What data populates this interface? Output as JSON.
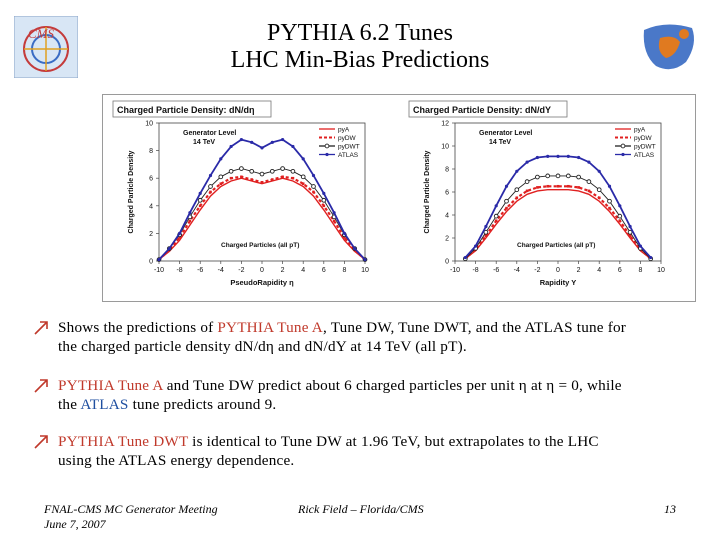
{
  "header": {
    "title_line1": "PYTHIA 6.2 Tunes",
    "title_line2": "LHC Min-Bias Predictions"
  },
  "colors": {
    "pyA": "#e02020",
    "pyDW": "#e02020",
    "pyDWT": "#222222",
    "ATLAS": "#2a2aa8",
    "highlight_red": "#c0392b",
    "highlight_blue": "#1f4fa0"
  },
  "chart_data": [
    {
      "type": "line",
      "title": "Charged Particle Density: dN/dη",
      "xlabel": "PseudoRapidity η",
      "ylabel": "Charged Particle Density",
      "annotation_top": "Generator Level",
      "annotation_top2": "14 TeV",
      "annotation_bottom": "Charged Particles (all pT)",
      "xlim": [
        -10,
        10
      ],
      "ylim": [
        0,
        10
      ],
      "xticks": [
        -10,
        -8,
        -6,
        -4,
        -2,
        0,
        2,
        4,
        6,
        8,
        10
      ],
      "yticks": [
        0,
        2,
        4,
        6,
        8,
        10
      ],
      "legend_position": "top-right",
      "series": [
        {
          "name": "pyA",
          "style": "solid-red",
          "x": [
            -10,
            -9,
            -8,
            -7,
            -6,
            -5,
            -4,
            -3,
            -2,
            -1,
            0,
            1,
            2,
            3,
            4,
            5,
            6,
            7,
            8,
            9,
            10
          ],
          "y": [
            0.1,
            0.7,
            1.5,
            2.6,
            3.7,
            4.7,
            5.4,
            5.8,
            6.0,
            5.8,
            5.6,
            5.8,
            6.0,
            5.8,
            5.4,
            4.7,
            3.7,
            2.6,
            1.5,
            0.7,
            0.1
          ]
        },
        {
          "name": "pyDW",
          "style": "dashed-red",
          "x": [
            -10,
            -9,
            -8,
            -7,
            -6,
            -5,
            -4,
            -3,
            -2,
            -1,
            0,
            1,
            2,
            3,
            4,
            5,
            6,
            7,
            8,
            9,
            10
          ],
          "y": [
            0.1,
            0.8,
            1.7,
            2.9,
            4.0,
            5.0,
            5.6,
            6.0,
            6.1,
            5.9,
            5.7,
            5.9,
            6.1,
            6.0,
            5.6,
            5.0,
            4.0,
            2.9,
            1.7,
            0.8,
            0.1
          ]
        },
        {
          "name": "pyDWT",
          "style": "open-circle-black",
          "x": [
            -10,
            -9,
            -8,
            -7,
            -6,
            -5,
            -4,
            -3,
            -2,
            -1,
            0,
            1,
            2,
            3,
            4,
            5,
            6,
            7,
            8,
            9,
            10
          ],
          "y": [
            0.1,
            0.9,
            1.9,
            3.2,
            4.4,
            5.4,
            6.1,
            6.5,
            6.7,
            6.5,
            6.3,
            6.5,
            6.7,
            6.5,
            6.1,
            5.4,
            4.4,
            3.2,
            1.9,
            0.9,
            0.1
          ]
        },
        {
          "name": "ATLAS",
          "style": "solid-blue",
          "x": [
            -10,
            -9,
            -8,
            -7,
            -6,
            -5,
            -4,
            -3,
            -2,
            -1,
            0,
            1,
            2,
            3,
            4,
            5,
            6,
            7,
            8,
            9,
            10
          ],
          "y": [
            0.1,
            0.9,
            2.0,
            3.5,
            4.9,
            6.2,
            7.4,
            8.3,
            8.8,
            8.6,
            8.2,
            8.6,
            8.8,
            8.3,
            7.4,
            6.2,
            4.9,
            3.5,
            2.0,
            0.9,
            0.1
          ]
        }
      ]
    },
    {
      "type": "line",
      "title": "Charged Particle Density: dN/dY",
      "xlabel": "Rapidity Y",
      "ylabel": "Charged Particle Density",
      "annotation_top": "Generator Level",
      "annotation_top2": "14 TeV",
      "annotation_bottom": "Charged Particles (all pT)",
      "xlim": [
        -10,
        10
      ],
      "ylim": [
        0,
        12
      ],
      "xticks": [
        -10,
        -8,
        -6,
        -4,
        -2,
        0,
        2,
        4,
        6,
        8,
        10
      ],
      "yticks": [
        0,
        2,
        4,
        6,
        8,
        10,
        12
      ],
      "legend_position": "top-right",
      "series": [
        {
          "name": "pyA",
          "style": "solid-red",
          "x": [
            -9,
            -8,
            -7,
            -6,
            -5,
            -4,
            -3,
            -2,
            -1,
            0,
            1,
            2,
            3,
            4,
            5,
            6,
            7,
            8,
            9
          ],
          "y": [
            0.2,
            0.9,
            2.0,
            3.2,
            4.3,
            5.2,
            5.8,
            6.1,
            6.2,
            6.2,
            6.2,
            6.1,
            5.8,
            5.2,
            4.3,
            3.2,
            2.0,
            0.9,
            0.2
          ]
        },
        {
          "name": "pyDW",
          "style": "dashed-red",
          "x": [
            -9,
            -8,
            -7,
            -6,
            -5,
            -4,
            -3,
            -2,
            -1,
            0,
            1,
            2,
            3,
            4,
            5,
            6,
            7,
            8,
            9
          ],
          "y": [
            0.2,
            1.0,
            2.2,
            3.5,
            4.6,
            5.5,
            6.1,
            6.4,
            6.5,
            6.5,
            6.5,
            6.4,
            6.1,
            5.5,
            4.6,
            3.5,
            2.2,
            1.0,
            0.2
          ]
        },
        {
          "name": "pyDWT",
          "style": "open-circle-black",
          "x": [
            -9,
            -8,
            -7,
            -6,
            -5,
            -4,
            -3,
            -2,
            -1,
            0,
            1,
            2,
            3,
            4,
            5,
            6,
            7,
            8,
            9
          ],
          "y": [
            0.2,
            1.1,
            2.5,
            3.9,
            5.2,
            6.2,
            6.9,
            7.3,
            7.4,
            7.4,
            7.4,
            7.3,
            6.9,
            6.2,
            5.2,
            3.9,
            2.5,
            1.1,
            0.2
          ]
        },
        {
          "name": "ATLAS",
          "style": "solid-blue",
          "x": [
            -9,
            -8,
            -7,
            -6,
            -5,
            -4,
            -3,
            -2,
            -1,
            0,
            1,
            2,
            3,
            4,
            5,
            6,
            7,
            8,
            9
          ],
          "y": [
            0.3,
            1.3,
            3.0,
            4.8,
            6.5,
            7.8,
            8.6,
            9.0,
            9.1,
            9.1,
            9.1,
            9.0,
            8.6,
            7.8,
            6.5,
            4.8,
            3.0,
            1.3,
            0.3
          ]
        }
      ]
    }
  ],
  "bullets": [
    {
      "parts": [
        {
          "t": "Shows the predictions of ",
          "c": ""
        },
        {
          "t": "PYTHIA Tune A",
          "c": "red"
        },
        {
          "t": ", Tune DW, Tune DWT, and the ATLAS tune for",
          "c": ""
        }
      ],
      "line2": "the charged particle density dN/dη and dN/dY at 14 TeV (all pT)."
    },
    {
      "parts": [
        {
          "t": "PYTHIA Tune A",
          "c": "red"
        },
        {
          "t": " and Tune DW predict about 6 charged particles per unit η at η = 0, while",
          "c": ""
        }
      ],
      "line2_parts": [
        {
          "t": "the ",
          "c": ""
        },
        {
          "t": "ATLAS",
          "c": "blue"
        },
        {
          "t": " tune predicts around 9.",
          "c": ""
        }
      ]
    },
    {
      "parts": [
        {
          "t": "PYTHIA Tune DWT",
          "c": "red"
        },
        {
          "t": " is identical to Tune DW at 1.96 TeV, but extrapolates to the LHC",
          "c": ""
        }
      ],
      "line2": "using the ATLAS energy dependence."
    }
  ],
  "footer": {
    "meeting": "FNAL-CMS MC Generator Meeting",
    "date": "June 7, 2007",
    "author": "Rick Field – Florida/CMS",
    "page": "13"
  },
  "icons": {
    "left_logo": "cms-logo-icon",
    "right_logo": "florida-logo-icon",
    "bullet": "arrow-bullet-icon"
  }
}
